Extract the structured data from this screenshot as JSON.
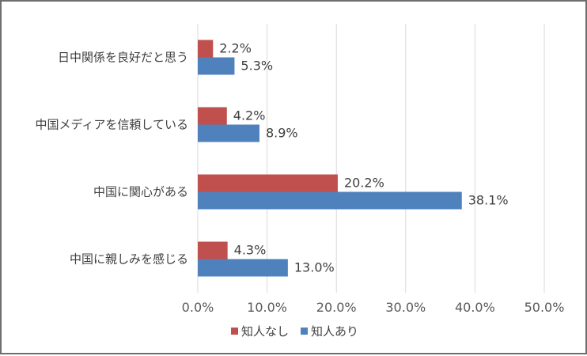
{
  "chart_data": {
    "type": "bar",
    "orientation": "horizontal",
    "categories": [
      "日中関係を良好だと思う",
      "中国メディアを信頼している",
      "中国に関心がある",
      "中国に親しみを感じる"
    ],
    "series": [
      {
        "name": "知人なし",
        "color": "#c0504d",
        "values": [
          2.2,
          4.2,
          20.2,
          4.3
        ],
        "labels": [
          "2.2%",
          "4.2%",
          "20.2%",
          "4.3%"
        ]
      },
      {
        "name": "知人あり",
        "color": "#4f81bd",
        "values": [
          5.3,
          8.9,
          38.1,
          13.0
        ],
        "labels": [
          "5.3%",
          "8.9%",
          "38.1%",
          "13.0%"
        ]
      }
    ],
    "xlim": [
      0,
      50
    ],
    "ticks": [
      0,
      10,
      20,
      30,
      40,
      50
    ],
    "tick_labels": [
      "0.0%",
      "10.0%",
      "20.0%",
      "30.0%",
      "40.0%",
      "50.0%"
    ],
    "grid": true,
    "legend_position": "bottom",
    "title": "",
    "xlabel": "",
    "ylabel": ""
  }
}
